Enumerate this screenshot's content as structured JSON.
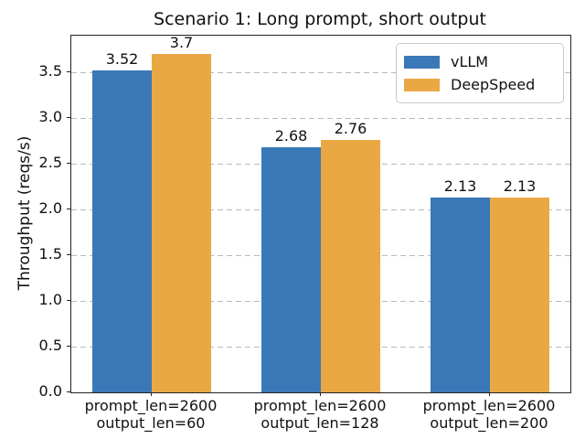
{
  "chart_data": {
    "type": "bar",
    "title": "Scenario 1: Long prompt, short output",
    "xlabel": "",
    "ylabel": "Throughput (reqs/s)",
    "categories": [
      "prompt_len=2600\noutput_len=60",
      "prompt_len=2600\noutput_len=128",
      "prompt_len=2600\noutput_len=200"
    ],
    "series": [
      {
        "name": "vLLM",
        "color": "#3a78b7",
        "values": [
          3.52,
          2.68,
          2.13
        ],
        "labels": [
          "3.52",
          "2.68",
          "2.13"
        ]
      },
      {
        "name": "DeepSpeed",
        "color": "#eaa844",
        "values": [
          3.7,
          2.76,
          2.13
        ],
        "labels": [
          "3.7",
          "2.76",
          "2.13"
        ]
      }
    ],
    "ylim": [
      0,
      3.9
    ],
    "ytick_values": [
      0,
      0.5,
      1,
      1.5,
      2,
      2.5,
      3,
      3.5
    ],
    "ytick_labels": [
      "0.0",
      "0.5",
      "1.0",
      "1.5",
      "2.0",
      "2.5",
      "3.0",
      "3.5"
    ],
    "grid": "horizontal-dashed",
    "grid_color": "#b9b9b9",
    "legend_position": "upper right",
    "bar_width_ratio": 0.35,
    "background": "#ffffff"
  }
}
